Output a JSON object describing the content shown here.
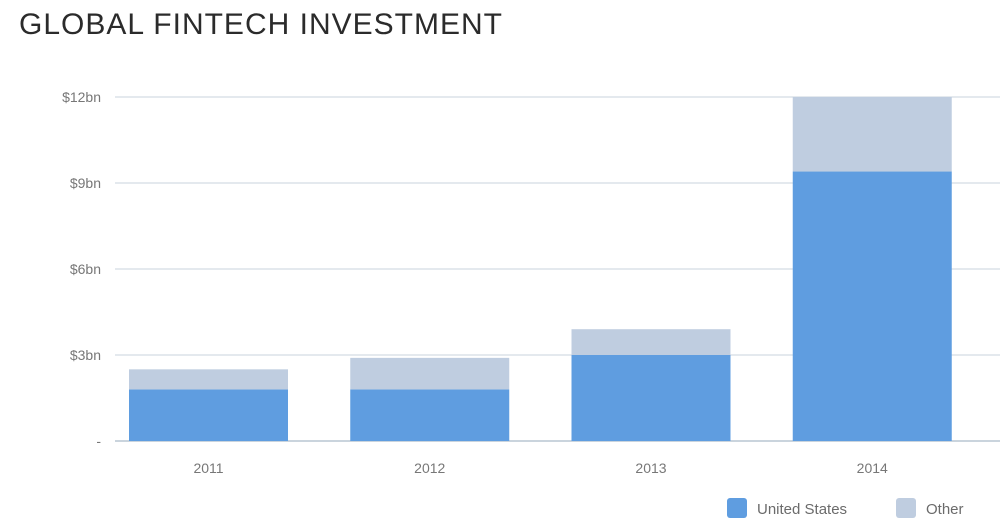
{
  "page": {
    "title": "GLOBAL FINTECH INVESTMENT"
  },
  "chart_data": {
    "type": "bar",
    "stacked": true,
    "categories": [
      "2011",
      "2012",
      "2013",
      "2014"
    ],
    "series": [
      {
        "name": "United States",
        "color": "#5f9de0",
        "values": [
          1.8,
          1.8,
          3.0,
          9.4
        ]
      },
      {
        "name": "Other",
        "color": "#bfcde0",
        "values": [
          0.7,
          1.1,
          0.9,
          2.6
        ]
      }
    ],
    "title": "GLOBAL FINTECH INVESTMENT",
    "xlabel": "",
    "ylabel": "",
    "ylim": [
      0,
      12
    ],
    "y_ticks": [
      {
        "value": 0,
        "label": "-"
      },
      {
        "value": 3,
        "label": "$3bn"
      },
      {
        "value": 6,
        "label": "$6bn"
      },
      {
        "value": 9,
        "label": "$9bn"
      },
      {
        "value": 12,
        "label": "$12bn"
      }
    ],
    "grid": true,
    "legend": "bottom-right"
  }
}
